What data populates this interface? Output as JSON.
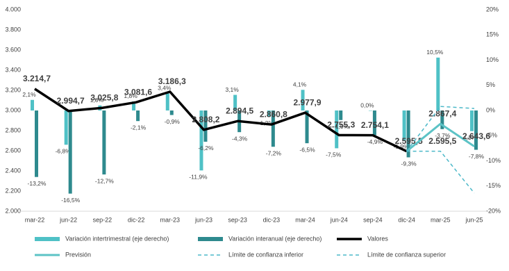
{
  "chart_data": {
    "type": "combo",
    "categories": [
      "mar-22",
      "jun-22",
      "sep-22",
      "dic-22",
      "mar-23",
      "jun-23",
      "sep-23",
      "dic-23",
      "mar-24",
      "jun-24",
      "sep-24",
      "dic-24",
      "mar-25",
      "jun-25"
    ],
    "ylim": [
      2000,
      4000
    ],
    "yticks": [
      {
        "value": 2000,
        "label": "2.000"
      },
      {
        "value": 2200,
        "label": "2.200"
      },
      {
        "value": 2400,
        "label": "2.400"
      },
      {
        "value": 2600,
        "label": "2.600"
      },
      {
        "value": 2800,
        "label": "2.800"
      },
      {
        "value": 3000,
        "label": "3.000"
      },
      {
        "value": 3200,
        "label": "3.200"
      },
      {
        "value": 3400,
        "label": "3.400"
      },
      {
        "value": 3600,
        "label": "3.600"
      },
      {
        "value": 3800,
        "label": "3.800"
      },
      {
        "value": 4000,
        "label": "4.000"
      }
    ],
    "y2lim": [
      -20,
      20
    ],
    "y2ticks": [
      {
        "value": -20,
        "label": "-20%"
      },
      {
        "value": -15,
        "label": "-15%"
      },
      {
        "value": -10,
        "label": "-10%"
      },
      {
        "value": -5,
        "label": "-5%"
      },
      {
        "value": 0,
        "label": "0%"
      },
      {
        "value": 5,
        "label": "5%"
      },
      {
        "value": 10,
        "label": "10%"
      },
      {
        "value": 15,
        "label": "15%"
      },
      {
        "value": 20,
        "label": "20%"
      }
    ],
    "series": [
      {
        "name": "Variación intertrimestral (eje derecho)",
        "kind": "bar",
        "axis": "y2",
        "color": "#4fc1c6",
        "values": [
          2.1,
          -6.8,
          1.0,
          1.8,
          3.4,
          -11.9,
          3.1,
          -1.2,
          4.1,
          -7.5,
          0.0,
          -5.9,
          10.5,
          -4.1
        ],
        "value_labels": [
          "2,1%",
          "-6,8%",
          "1,0%",
          "1,8%",
          "3,4%",
          "-11,9%",
          "3,1%",
          "-1,2%",
          "4,1%",
          "-7,5%",
          "0,0%",
          "-5,9%",
          "10,5%",
          "-4,1%"
        ]
      },
      {
        "name": "Variación interanual (eje derecho)",
        "kind": "bar",
        "axis": "y2",
        "color": "#2e8a8e",
        "values": [
          -13.2,
          -16.5,
          -12.7,
          -2.1,
          -0.9,
          -6.2,
          -4.3,
          -7.2,
          -6.5,
          -1.9,
          -4.9,
          -9.3,
          -3.7,
          -7.8
        ],
        "value_labels": [
          "-13,2%",
          "-16,5%",
          "-12,7%",
          "-2,1%",
          "-0,9%",
          "-6,2%",
          "-4,3%",
          "-7,2%",
          "-6,5%",
          "-1,9%",
          "-4,9%",
          "-9,3%",
          "-3,7%",
          "-7,8%"
        ]
      },
      {
        "name": "Valores",
        "kind": "line",
        "color": "#000000",
        "width": 3.5,
        "values": [
          3214.7,
          2994.7,
          3025.8,
          3081.6,
          3186.3,
          2808.2,
          2894.5,
          2860.8,
          2977.9,
          2755.3,
          2754.1,
          2595.5,
          null,
          null
        ],
        "value_labels": [
          "3.214,7",
          "2.994,7",
          "3.025,8",
          "3.081,6",
          "3.186,3",
          "2.808,2",
          "2.894,5",
          "2.860,8",
          "2.977,9",
          "2.755,3",
          "2.754,1",
          "2.595,5",
          null,
          null
        ]
      },
      {
        "name": "Previsión",
        "kind": "line",
        "color": "#5cc3c6",
        "width": 3,
        "values": [
          null,
          null,
          null,
          null,
          null,
          null,
          null,
          null,
          null,
          null,
          null,
          2595.5,
          2867.4,
          2643.6
        ],
        "value_labels": [
          null,
          null,
          null,
          null,
          null,
          null,
          null,
          null,
          null,
          null,
          null,
          null,
          "2.867,4",
          "2.643,6"
        ]
      },
      {
        "name": "Límite de confianza inferior",
        "kind": "line",
        "dashed": true,
        "color": "#4bb8c8",
        "width": 1.5,
        "values": [
          null,
          null,
          null,
          null,
          null,
          null,
          null,
          null,
          null,
          null,
          null,
          2595.5,
          2595.5,
          2180
        ],
        "value_labels": [
          null,
          null,
          null,
          null,
          null,
          null,
          null,
          null,
          null,
          null,
          null,
          null,
          "2.595,5",
          null
        ]
      },
      {
        "name": "Límite de confianza superior",
        "kind": "line",
        "dashed": true,
        "color": "#4bb8c8",
        "width": 1.5,
        "values": [
          null,
          null,
          null,
          null,
          null,
          null,
          null,
          null,
          null,
          null,
          null,
          2595.5,
          3040,
          3020
        ]
      }
    ]
  }
}
